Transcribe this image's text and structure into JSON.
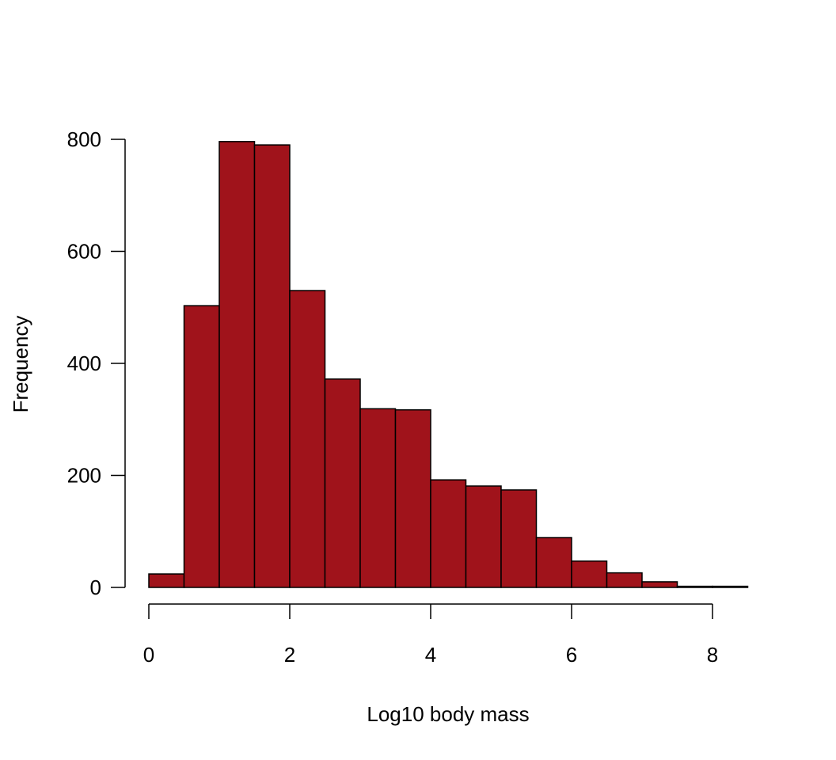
{
  "chart_data": {
    "type": "bar",
    "subtype": "histogram",
    "title": "",
    "xlabel": "Log10 body mass",
    "ylabel": "Frequency",
    "bin_edges": [
      0,
      0.5,
      1,
      1.5,
      2,
      2.5,
      3,
      3.5,
      4,
      4.5,
      5,
      5.5,
      6,
      6.5,
      7,
      7.5,
      8,
      8.5
    ],
    "values": [
      24,
      503,
      796,
      790,
      530,
      372,
      319,
      317,
      192,
      181,
      174,
      89,
      47,
      26,
      10,
      2,
      2
    ],
    "xlim": [
      0,
      8.5
    ],
    "ylim": [
      0,
      800
    ],
    "xticks": [
      0,
      2,
      4,
      6,
      8
    ],
    "yticks": [
      0,
      200,
      400,
      600,
      800
    ],
    "xtick_labels": [
      "0",
      "2",
      "4",
      "6",
      "8"
    ],
    "ytick_labels": [
      "0",
      "200",
      "400",
      "600",
      "800"
    ],
    "grid": false,
    "colors": {
      "bar_fill": "#A0131B",
      "bar_stroke": "#000000"
    }
  }
}
